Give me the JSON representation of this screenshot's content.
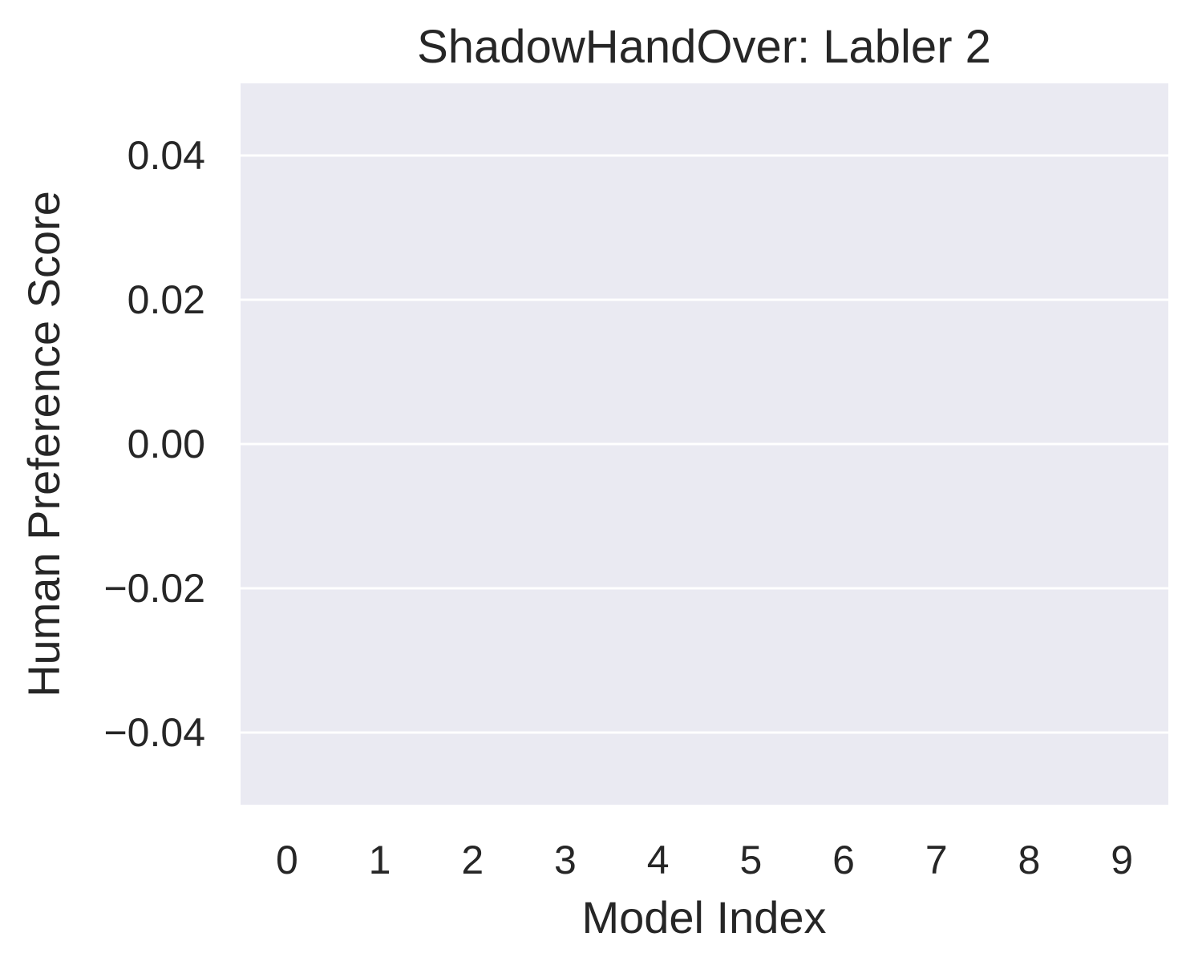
{
  "chart_data": {
    "type": "bar",
    "title": "ShadowHandOver: Labler 2",
    "xlabel": "Model Index",
    "ylabel": "Human Preference Score",
    "categories": [
      "0",
      "1",
      "2",
      "3",
      "4",
      "5",
      "6",
      "7",
      "8",
      "9"
    ],
    "values": [
      0,
      0,
      0,
      0,
      0,
      0,
      0,
      0,
      0,
      0
    ],
    "ylim": [
      -0.05,
      0.05
    ],
    "yticks": [
      -0.04,
      -0.02,
      0.0,
      0.02,
      0.04
    ],
    "ytick_labels": [
      "−0.04",
      "−0.02",
      "0.00",
      "0.02",
      "0.04"
    ],
    "grid": true,
    "colors": {
      "plot_background": "#eaeaf2",
      "grid": "#ffffff",
      "text": "#262626",
      "bar": "#4c72b0"
    }
  }
}
